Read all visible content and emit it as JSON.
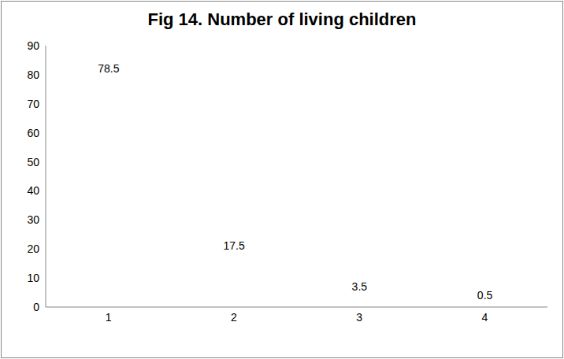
{
  "chart_data": {
    "type": "bar",
    "title": "Fig 14. Number of living children",
    "categories": [
      "1",
      "2",
      "3",
      "4"
    ],
    "values": [
      78.5,
      17.5,
      3.5,
      0.5
    ],
    "color": "#ffffff",
    "ylim": [
      0,
      90
    ],
    "yticks": [
      0,
      10,
      20,
      30,
      40,
      50,
      60,
      70,
      80,
      90
    ],
    "grid": false,
    "data_labels": true
  }
}
